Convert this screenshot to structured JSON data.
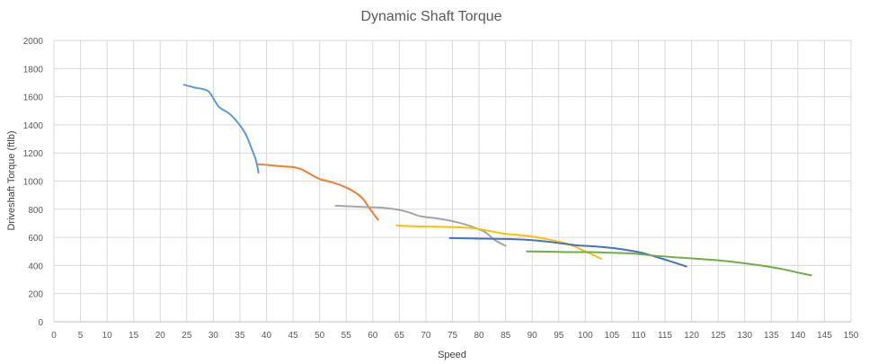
{
  "chart_data": {
    "type": "line",
    "title": "Dynamic Shaft Torque",
    "xlabel": "Speed",
    "ylabel": "Driveshaft Torque (ftlb)",
    "xlim": [
      0,
      150
    ],
    "ylim": [
      0,
      2000
    ],
    "x_ticks": [
      0,
      5,
      10,
      15,
      20,
      25,
      30,
      35,
      40,
      45,
      50,
      55,
      60,
      65,
      70,
      75,
      80,
      85,
      90,
      95,
      100,
      105,
      110,
      115,
      120,
      125,
      130,
      135,
      140,
      145,
      150
    ],
    "y_ticks": [
      0,
      200,
      400,
      600,
      800,
      1000,
      1200,
      1400,
      1600,
      1800,
      2000
    ],
    "grid": true,
    "legend": "none",
    "series": [
      {
        "color": "#5b9bd5",
        "x": [
          24.5,
          26.5,
          28.5,
          29.5,
          31,
          33,
          34.5,
          36,
          37,
          38,
          38.5
        ],
        "y": [
          1685,
          1665,
          1650,
          1620,
          1530,
          1480,
          1420,
          1340,
          1250,
          1150,
          1060
        ]
      },
      {
        "color": "#ed7d31",
        "x": [
          38.5,
          41,
          43,
          45,
          46.5,
          48,
          50,
          52,
          54,
          56,
          58,
          59.5,
          61
        ],
        "y": [
          1120,
          1112,
          1105,
          1100,
          1085,
          1055,
          1015,
          995,
          970,
          935,
          880,
          800,
          725
        ]
      },
      {
        "color": "#a5a5a5",
        "x": [
          53,
          56,
          59,
          62,
          65,
          67,
          69,
          72,
          75,
          78,
          81,
          83,
          85
        ],
        "y": [
          825,
          820,
          815,
          810,
          795,
          775,
          750,
          735,
          715,
          685,
          640,
          580,
          540
        ]
      },
      {
        "color": "#ffc000",
        "x": [
          64.5,
          67,
          70,
          73,
          76,
          79,
          82,
          85,
          88,
          91,
          94,
          97,
          100,
          103
        ],
        "y": [
          685,
          680,
          677,
          675,
          672,
          665,
          645,
          625,
          615,
          600,
          578,
          550,
          500,
          448
        ]
      },
      {
        "color": "#4472c4",
        "x": [
          74.5,
          78,
          82,
          86,
          90,
          94,
          98,
          102,
          106,
          110,
          113,
          116,
          119
        ],
        "y": [
          595,
          593,
          590,
          588,
          580,
          565,
          545,
          535,
          520,
          495,
          465,
          430,
          393
        ]
      },
      {
        "color": "#70ad47",
        "x": [
          89,
          93,
          97,
          101,
          105,
          109,
          113,
          117,
          121,
          125,
          129,
          133,
          137,
          140,
          142.5
        ],
        "y": [
          500,
          498,
          495,
          495,
          490,
          485,
          470,
          458,
          448,
          437,
          420,
          400,
          375,
          350,
          330
        ]
      }
    ]
  }
}
